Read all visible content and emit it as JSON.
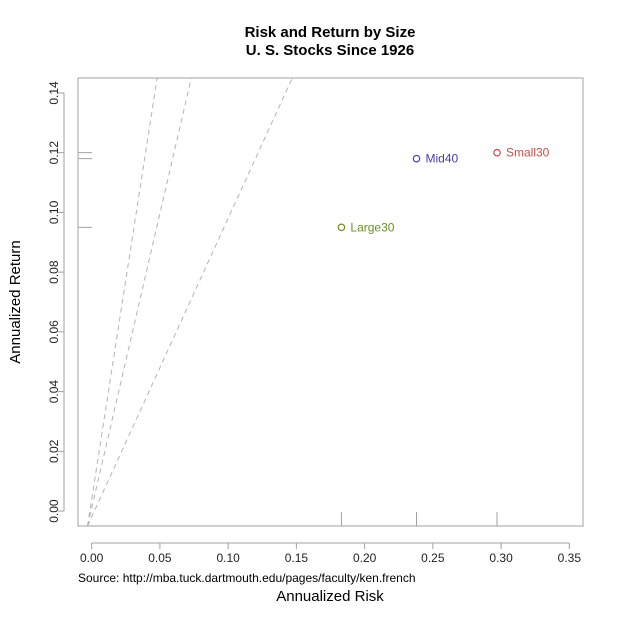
{
  "chart_data": {
    "type": "scatter",
    "title": "Risk and Return by Size",
    "subtitle": "U. S. Stocks Since 1926",
    "xlabel": "Annualized Risk",
    "ylabel": "Annualized Return",
    "source": "Source: http://mba.tuck.dartmouth.edu/pages/faculty/ken.french",
    "xlim": [
      -0.01,
      0.36
    ],
    "ylim": [
      -0.005,
      0.145
    ],
    "xticks": [
      {
        "value": 0.0,
        "label": "0.00"
      },
      {
        "value": 0.05,
        "label": "0.05"
      },
      {
        "value": 0.1,
        "label": "0.10"
      },
      {
        "value": 0.15,
        "label": "0.15"
      },
      {
        "value": 0.2,
        "label": "0.20"
      },
      {
        "value": 0.25,
        "label": "0.25"
      },
      {
        "value": 0.3,
        "label": "0.30"
      },
      {
        "value": 0.35,
        "label": "0.35"
      }
    ],
    "yticks": [
      {
        "value": 0.0,
        "label": "0.00"
      },
      {
        "value": 0.02,
        "label": "0.02"
      },
      {
        "value": 0.04,
        "label": "0.04"
      },
      {
        "value": 0.06,
        "label": "0.06"
      },
      {
        "value": 0.08,
        "label": "0.08"
      },
      {
        "value": 0.1,
        "label": "0.10"
      },
      {
        "value": 0.12,
        "label": "0.12"
      },
      {
        "value": 0.14,
        "label": "0.14"
      }
    ],
    "grid": false,
    "points": [
      {
        "label": "Large30",
        "x": 0.183,
        "y": 0.095,
        "color": "#6b8e23"
      },
      {
        "label": "Mid40",
        "x": 0.238,
        "y": 0.118,
        "color": "#4b3ca8"
      },
      {
        "label": "Small30",
        "x": 0.297,
        "y": 0.12,
        "color": "#c0504d"
      }
    ],
    "reference_lines": [
      {
        "x0": -0.003,
        "y0": -0.005,
        "x1": 0.048,
        "y1": 0.145
      },
      {
        "x0": -0.003,
        "y0": -0.005,
        "x1": 0.073,
        "y1": 0.145
      },
      {
        "x0": -0.003,
        "y0": -0.005,
        "x1": 0.147,
        "y1": 0.145
      }
    ],
    "line_color": "#b3b3b3",
    "axis_color": "#a0a0a0"
  }
}
